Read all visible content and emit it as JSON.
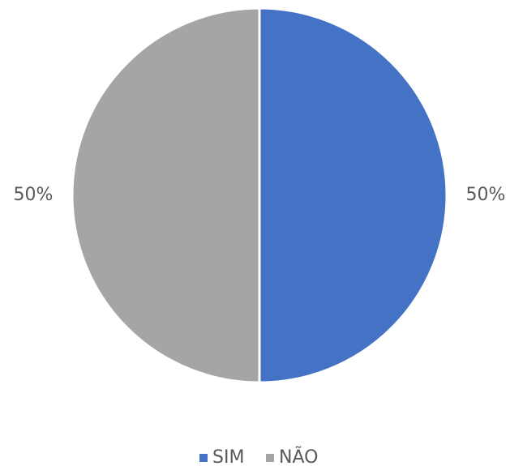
{
  "chart_data": {
    "type": "pie",
    "categories": [
      "SIM",
      "NÃO"
    ],
    "values": [
      50,
      50
    ],
    "value_labels": [
      "50%",
      "50%"
    ],
    "colors": [
      "#4472c4",
      "#a5a5a5"
    ],
    "legend": "bottom"
  }
}
